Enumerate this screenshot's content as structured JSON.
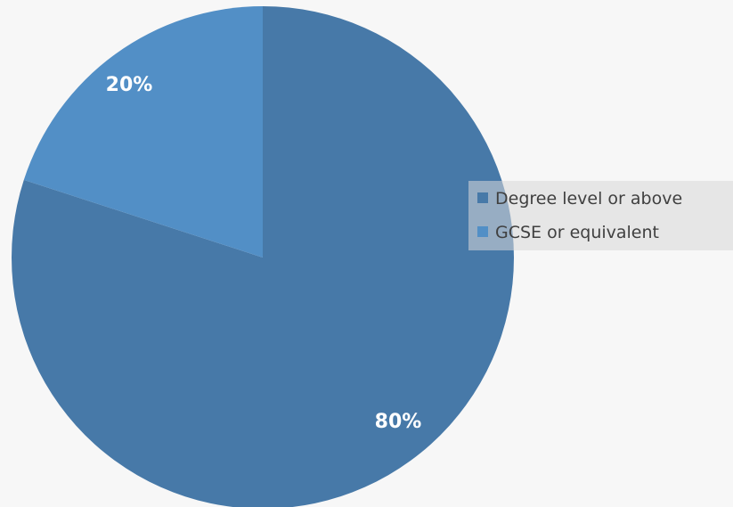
{
  "chart_data": {
    "type": "pie",
    "title": "",
    "categories": [
      "Degree level or above",
      "GCSE or equivalent"
    ],
    "values": [
      80,
      20
    ],
    "data_labels": [
      "80%",
      "20%"
    ],
    "colors": [
      "#4779a8",
      "#528fc6"
    ],
    "start_angle_deg": 0,
    "direction": "clockwise",
    "legend": {
      "placement": "right",
      "items": [
        "Degree level or above",
        "GCSE or equivalent"
      ]
    }
  }
}
